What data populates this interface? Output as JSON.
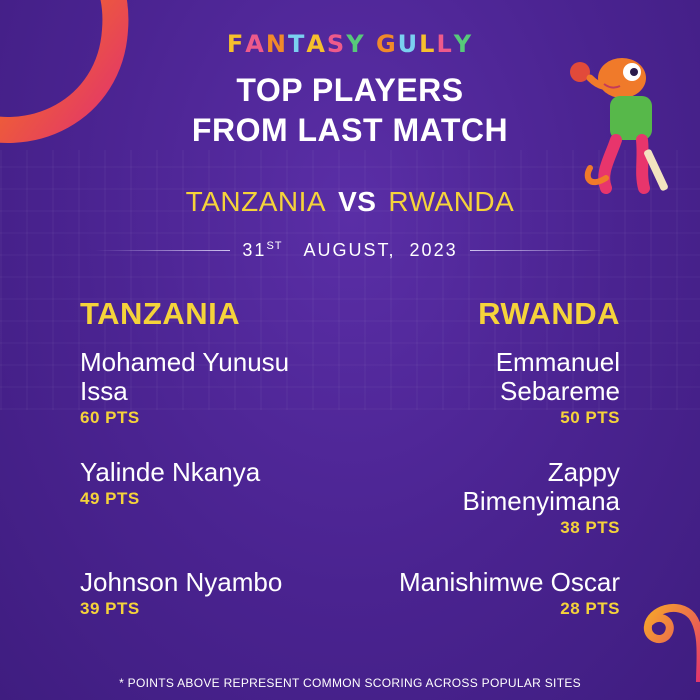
{
  "brand": {
    "logo_letters": [
      "F",
      "A",
      "N",
      "T",
      "A",
      "S",
      "Y",
      " ",
      "G",
      "U",
      "L",
      "L",
      "Y"
    ],
    "logo_colors": [
      "#f6c02d",
      "#ee5a8b",
      "#f08a2a",
      "#7ad0f0",
      "#f6c02d",
      "#ee5a8b",
      "#57c97a",
      "#ffffff",
      "#f08a2a",
      "#7ad0f0",
      "#f6c02d",
      "#ee5a8b",
      "#57c97a"
    ]
  },
  "headline": {
    "line1": "TOP PLAYERS",
    "line2": "FROM LAST MATCH"
  },
  "match": {
    "team1": "TANZANIA",
    "vs": "VS",
    "team2": "RWANDA",
    "date_day": "31",
    "date_suffix": "ST",
    "date_rest": "AUGUST,  2023"
  },
  "teams": [
    {
      "name": "TANZANIA",
      "players": [
        {
          "name": "Mohamed Yunusu Issa",
          "points": "60 PTS"
        },
        {
          "name": "Yalinde Nkanya",
          "points": "49 PTS"
        },
        {
          "name": "Johnson Nyambo",
          "points": "39 PTS"
        }
      ]
    },
    {
      "name": "RWANDA",
      "players": [
        {
          "name": "Emmanuel Sebareme",
          "points": "50 PTS"
        },
        {
          "name": "Zappy Bimenyimana",
          "points": "38 PTS"
        },
        {
          "name": "Manishimwe Oscar",
          "points": "28 PTS"
        }
      ]
    }
  ],
  "footnote": "* POINTS ABOVE REPRESENT COMMON SCORING ACROSS POPULAR SITES",
  "colors": {
    "background": "#4a2390",
    "accent_yellow": "#f5d33a",
    "swirl_orange": "#f08a2a",
    "swirl_pink": "#e8356c"
  }
}
